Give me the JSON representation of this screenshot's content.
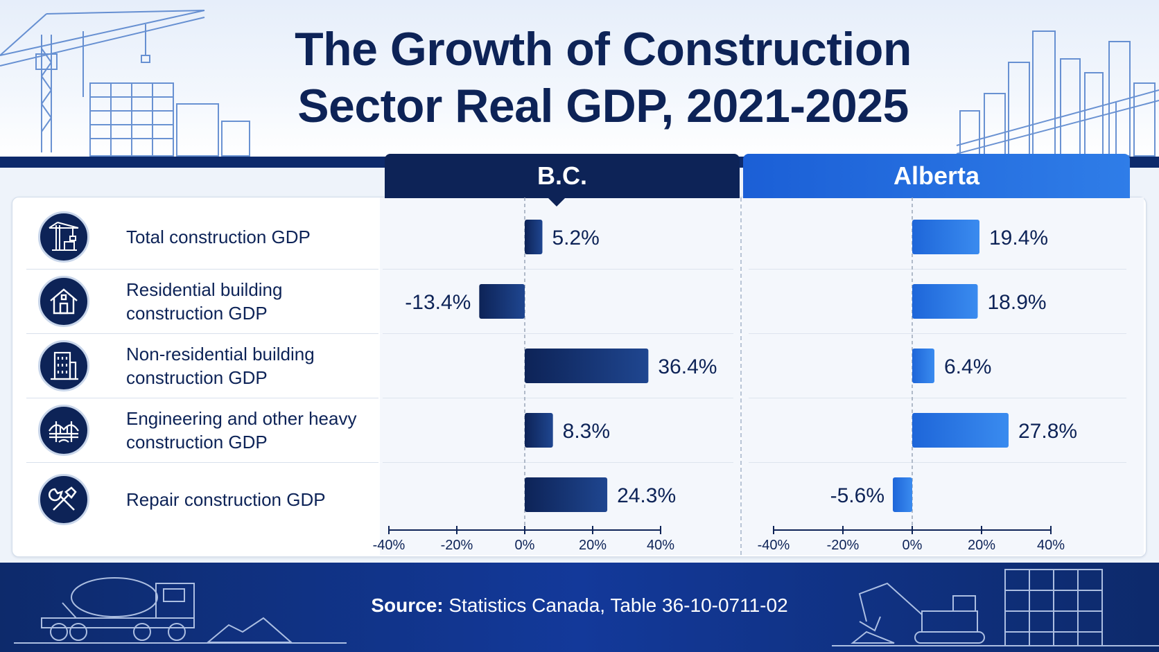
{
  "title_lines": [
    "The Growth of Construction",
    "Sector Real GDP, 2021-2025"
  ],
  "panels": [
    "B.C.",
    "Alberta"
  ],
  "categories": [
    {
      "label": "Total construction GDP",
      "icon": "crane-icon"
    },
    {
      "label": "Residential building construction GDP",
      "icon": "house-icon"
    },
    {
      "label": "Non-residential building construction GDP",
      "icon": "office-building-icon"
    },
    {
      "label": "Engineering and other heavy construction GDP",
      "icon": "bridge-icon"
    },
    {
      "label": "Repair construction GDP",
      "icon": "tools-icon"
    }
  ],
  "source": {
    "prefix": "Source:",
    "text": " Statistics Canada, Table 36-10-0711-02"
  },
  "colors": {
    "bc_bar_start": "#0d2357",
    "bc_bar_end": "#1f4690",
    "ab_bar_start": "#1e66d9",
    "ab_bar_end": "#3a8bef",
    "navy": "#0d2357"
  },
  "chart_data": [
    {
      "type": "bar",
      "orientation": "horizontal",
      "title": "B.C.",
      "categories": [
        "Total construction GDP",
        "Residential building construction GDP",
        "Non-residential building construction GDP",
        "Engineering and other heavy construction GDP",
        "Repair construction GDP"
      ],
      "values": [
        5.2,
        -13.4,
        36.4,
        8.3,
        24.3
      ],
      "value_labels": [
        "5.2%",
        "-13.4%",
        "36.4%",
        "8.3%",
        "24.3%"
      ],
      "xlim": [
        -40,
        40
      ],
      "xticks": [
        "-40%",
        "-20%",
        "0%",
        "20%",
        "40%"
      ]
    },
    {
      "type": "bar",
      "orientation": "horizontal",
      "title": "Alberta",
      "categories": [
        "Total construction GDP",
        "Residential building construction GDP",
        "Non-residential building construction GDP",
        "Engineering and other heavy construction GDP",
        "Repair construction GDP"
      ],
      "values": [
        19.4,
        18.9,
        6.4,
        27.8,
        -5.6
      ],
      "value_labels": [
        "19.4%",
        "18.9%",
        "6.4%",
        "27.8%",
        "-5.6%"
      ],
      "xlim": [
        -40,
        40
      ],
      "xticks": [
        "-40%",
        "-20%",
        "0%",
        "20%",
        "40%"
      ]
    }
  ]
}
